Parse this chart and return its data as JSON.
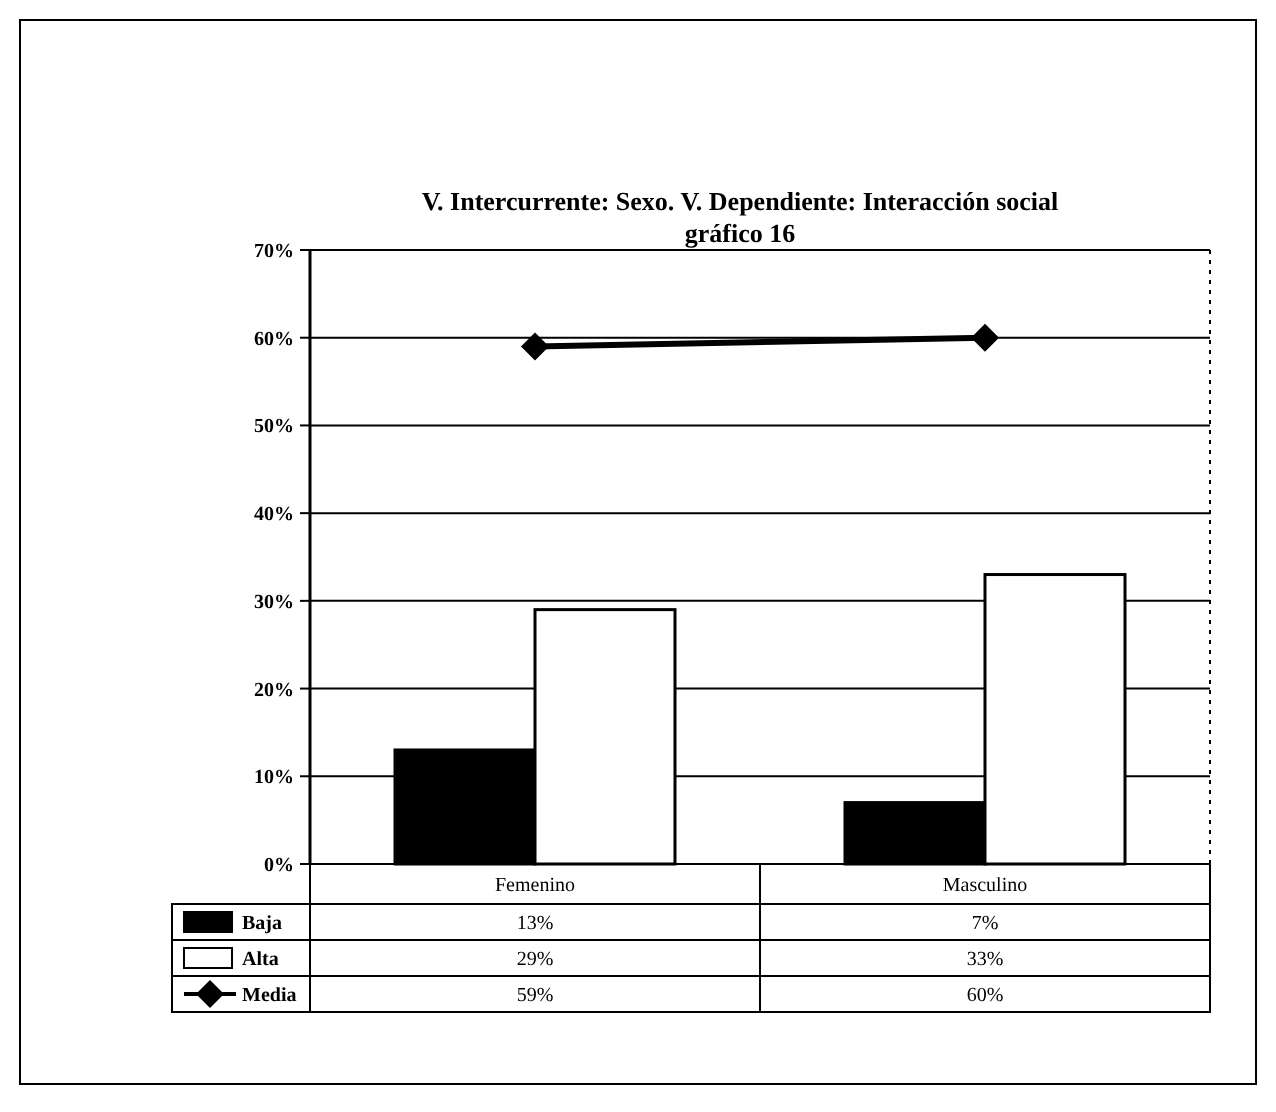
{
  "chart_data": {
    "type": "bar",
    "title": "V. Intercurrente: Sexo. V. Dependiente: Interacción social",
    "subtitle": "gráfico 16",
    "categories": [
      "Femenino",
      "Masculino"
    ],
    "series": [
      {
        "name": "Baja",
        "color": "#000000",
        "values": [
          13,
          7
        ],
        "value_labels": [
          "13%",
          "7%"
        ]
      },
      {
        "name": "Alta",
        "color": "#ffffff",
        "values": [
          29,
          33
        ],
        "value_labels": [
          "29%",
          "33%"
        ]
      },
      {
        "name": "Media",
        "type": "line",
        "color": "#000000",
        "values": [
          59,
          60
        ],
        "value_labels": [
          "59%",
          "60%"
        ]
      }
    ],
    "ylim": [
      0,
      70
    ],
    "yticks": [
      {
        "value": 0,
        "label": "0%"
      },
      {
        "value": 10,
        "label": "10%"
      },
      {
        "value": 20,
        "label": "20%"
      },
      {
        "value": 30,
        "label": "30%"
      },
      {
        "value": 40,
        "label": "40%"
      },
      {
        "value": 50,
        "label": "50%"
      },
      {
        "value": 60,
        "label": "60%"
      },
      {
        "value": 70,
        "label": "70%"
      }
    ],
    "grid": "y",
    "legend": "bottom left",
    "marker": "diamond",
    "line_style": "solid"
  }
}
